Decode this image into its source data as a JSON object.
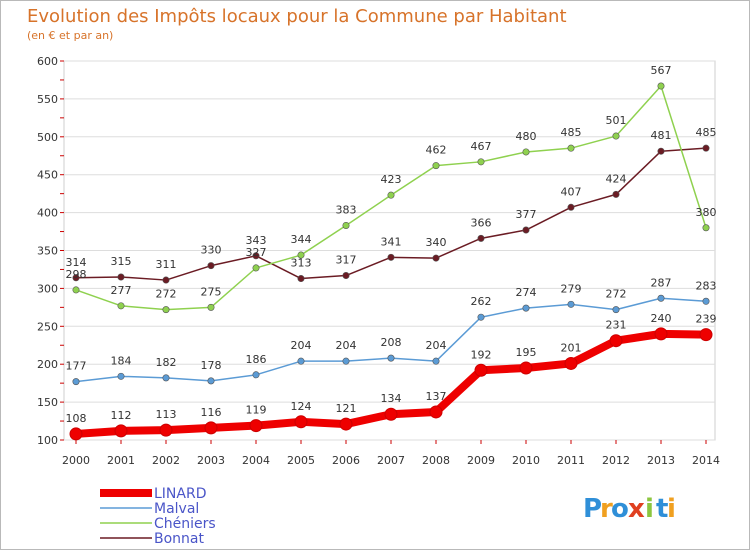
{
  "chart_data": {
    "type": "line",
    "title": "Evolution des Impôts locaux pour la Commune par Habitant",
    "subtitle": "(en € et par an)",
    "x": [
      2000,
      2001,
      2002,
      2003,
      2004,
      2005,
      2006,
      2007,
      2008,
      2009,
      2010,
      2011,
      2012,
      2013,
      2014
    ],
    "ylim": [
      100,
      600
    ],
    "yticks": [
      100,
      150,
      200,
      250,
      300,
      350,
      400,
      450,
      500,
      550,
      600
    ],
    "grid": "y",
    "legend": "bottom-left",
    "series": [
      {
        "name": "LINARD",
        "color": "#ee0000",
        "values": [
          108,
          112,
          113,
          116,
          119,
          124,
          121,
          134,
          137,
          192,
          195,
          201,
          231,
          240,
          239
        ]
      },
      {
        "name": "Malval",
        "color": "#5b9bd5",
        "values": [
          177,
          184,
          182,
          178,
          186,
          204,
          204,
          208,
          204,
          262,
          274,
          279,
          272,
          287,
          283
        ]
      },
      {
        "name": "Chéniers",
        "color": "#8fd14f",
        "values": [
          298,
          277,
          272,
          275,
          327,
          344,
          383,
          423,
          462,
          467,
          480,
          485,
          501,
          567,
          380
        ]
      },
      {
        "name": "Bonnat",
        "color": "#6b1c24",
        "values": [
          314,
          315,
          311,
          330,
          343,
          313,
          317,
          341,
          340,
          366,
          377,
          407,
          424,
          481,
          485
        ]
      }
    ]
  },
  "logo": {
    "letters": [
      "P",
      "r",
      "o",
      "x",
      "i",
      "t",
      "i"
    ],
    "colors": [
      "#2f8fd8",
      "#f0a020",
      "#2f8fd8",
      "#e04020",
      "#8cc63f",
      "#2f8fd8",
      "#f0a020"
    ]
  }
}
